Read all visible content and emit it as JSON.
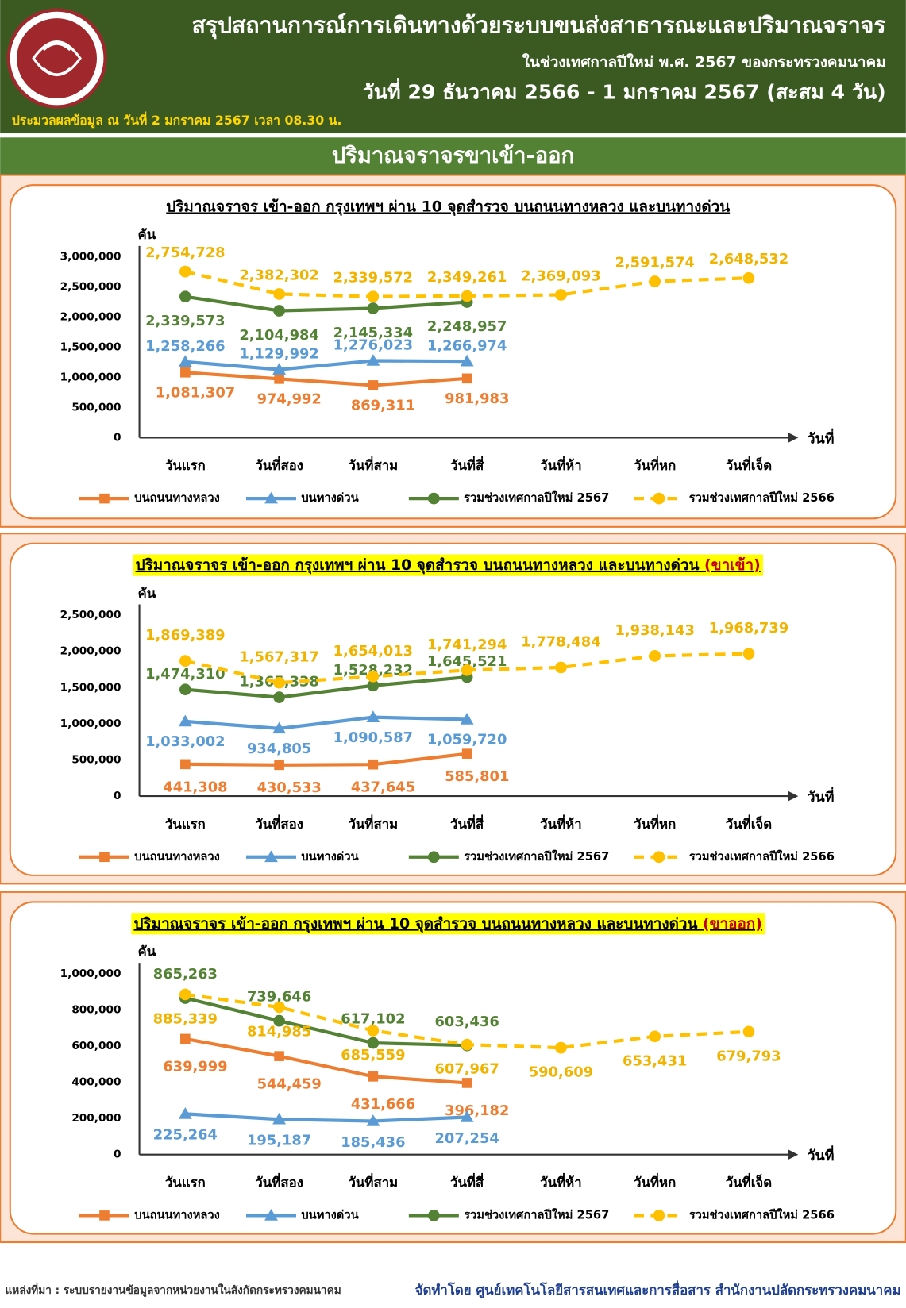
{
  "header": {
    "title": "สรุปสถานการณ์การเดินทางด้วยระบบขนส่งสาธารณะและปริมาณจราจร",
    "subtitle": "ในช่วงเทศกาลปีใหม่ พ.ศ. 2567 ของกระทรวงคมนาคม",
    "date_range": "วันที่ 29 ธันวาคม 2566 - 1 มกราคม 2567 (สะสม 4 วัน)",
    "processed": "ประมวลผลข้อมูล ณ วันที่ 2 มกราคม 2567 เวลา 08.30 น.",
    "section": "ปริมาณจราจรขาเข้า-ออก"
  },
  "chart_data": [
    {
      "type": "line",
      "title": "ปริมาณจราจร เข้า-ออก กรุงเทพฯ ผ่าน 10 จุดสำรวจ บนถนนทางหลวง และบนทางด่วน",
      "y_label": "คัน",
      "x_label": "วันที่",
      "grid": false,
      "legend": "bottom",
      "categories": [
        "วันแรก",
        "วันที่สอง",
        "วันที่สาม",
        "วันที่สี่",
        "วันที่ห้า",
        "วันที่หก",
        "วันที่เจ็ด"
      ],
      "ylim": [
        0,
        3000000
      ],
      "yticks": [
        0,
        {
          "value": 500000,
          "label": "500,000"
        },
        {
          "value": 1000000,
          "label": "1,000,000"
        },
        {
          "value": 1500000,
          "label": "1,500,000"
        },
        {
          "value": 2000000,
          "label": "2,000,000"
        },
        {
          "value": 2500000,
          "label": "2,500,000"
        },
        {
          "value": 3000000,
          "label": "3,000,000"
        }
      ],
      "series": [
        {
          "name": "บนถนนทางหลวง",
          "color": "#ed7d31",
          "marker": "square",
          "values": [
            1081307,
            974992,
            869311,
            981983,
            null,
            null,
            null
          ],
          "value_labels": [
            "1,081,307",
            "974,992",
            "869,311",
            "981,983",
            null,
            null,
            null
          ]
        },
        {
          "name": "บนทางด่วน",
          "color": "#5b9bd5",
          "marker": "triangle",
          "values": [
            1258266,
            1129992,
            1276023,
            1266974,
            null,
            null,
            null
          ],
          "value_labels": [
            "1,258,266",
            "1,129,992",
            "1,276,023",
            "1,266,974",
            null,
            null,
            null
          ]
        },
        {
          "name": "รวมช่วงเทศกาลปีใหม่ 2567",
          "color": "#548235",
          "marker": "circle",
          "values": [
            2339573,
            2104984,
            2145334,
            2248957,
            null,
            null,
            null
          ],
          "value_labels": [
            "2,339,573",
            "2,104,984",
            "2,145,334",
            "2,248,957",
            null,
            null,
            null
          ]
        },
        {
          "name": "รวมช่วงเทศกาลปีใหม่ 2566",
          "color": "#ffc000",
          "marker": "circle",
          "dashed": true,
          "values": [
            2754728,
            2382302,
            2339572,
            2349261,
            2369093,
            2591574,
            2648532
          ],
          "value_labels": [
            "2,754,728",
            "2,382,302",
            "2,339,572",
            "2,349,261",
            "2,369,093",
            "2,591,574",
            "2,648,532"
          ]
        }
      ]
    },
    {
      "type": "line",
      "title": "ปริมาณจราจร เข้า-ออก กรุงเทพฯ ผ่าน 10 จุดสำรวจ บนถนนทางหลวง และบนทางด่วน ",
      "title_note": "(ขาเข้า)",
      "y_label": "คัน",
      "x_label": "วันที่",
      "grid": false,
      "legend": "bottom",
      "categories": [
        "วันแรก",
        "วันที่สอง",
        "วันที่สาม",
        "วันที่สี่",
        "วันที่ห้า",
        "วันที่หก",
        "วันที่เจ็ด"
      ],
      "ylim": [
        0,
        2500000
      ],
      "yticks": [
        0,
        {
          "value": 500000,
          "label": "500,000"
        },
        {
          "value": 1000000,
          "label": "1,000,000"
        },
        {
          "value": 1500000,
          "label": "1,500,000"
        },
        {
          "value": 2000000,
          "label": "2,000,000"
        },
        {
          "value": 2500000,
          "label": "2,500,000"
        }
      ],
      "series": [
        {
          "name": "บนถนนทางหลวง",
          "color": "#ed7d31",
          "marker": "square",
          "values": [
            441308,
            430533,
            437645,
            585801,
            null,
            null,
            null
          ],
          "value_labels": [
            "441,308",
            "430,533",
            "437,645",
            "585,801",
            null,
            null,
            null
          ]
        },
        {
          "name": "บนทางด่วน",
          "color": "#5b9bd5",
          "marker": "triangle",
          "values": [
            1033002,
            934805,
            1090587,
            1059720,
            null,
            null,
            null
          ],
          "value_labels": [
            "1,033,002",
            "934,805",
            "1,090,587",
            "1,059,720",
            null,
            null,
            null
          ]
        },
        {
          "name": "รวมช่วงเทศกาลปีใหม่ 2567",
          "color": "#548235",
          "marker": "circle",
          "values": [
            1474310,
            1365338,
            1528232,
            1645521,
            null,
            null,
            null
          ],
          "value_labels": [
            "1,474,310",
            "1,365,338",
            "1,528,232",
            "1,645,521",
            null,
            null,
            null
          ]
        },
        {
          "name": "รวมช่วงเทศกาลปีใหม่ 2566",
          "color": "#ffc000",
          "marker": "circle",
          "dashed": true,
          "values": [
            1869389,
            1567317,
            1654013,
            1741294,
            1778484,
            1938143,
            1968739
          ],
          "value_labels": [
            "1,869,389",
            "1,567,317",
            "1,654,013",
            "1,741,294",
            "1,778,484",
            "1,938,143",
            "1,968,739"
          ]
        }
      ]
    },
    {
      "type": "line",
      "title": "ปริมาณจราจร เข้า-ออก กรุงเทพฯ ผ่าน 10 จุดสำรวจ บนถนนทางหลวง และบนทางด่วน ",
      "title_note": "(ขาออก)",
      "y_label": "คัน",
      "x_label": "วันที่",
      "grid": false,
      "legend": "bottom",
      "categories": [
        "วันแรก",
        "วันที่สอง",
        "วันที่สาม",
        "วันที่สี่",
        "วันที่ห้า",
        "วันที่หก",
        "วันที่เจ็ด"
      ],
      "ylim": [
        0,
        1000000
      ],
      "yticks": [
        0,
        {
          "value": 200000,
          "label": "200,000"
        },
        {
          "value": 400000,
          "label": "400,000"
        },
        {
          "value": 600000,
          "label": "600,000"
        },
        {
          "value": 800000,
          "label": "800,000"
        },
        {
          "value": 1000000,
          "label": "1,000,000"
        }
      ],
      "series": [
        {
          "name": "บนถนนทางหลวง",
          "color": "#ed7d31",
          "marker": "square",
          "values": [
            639999,
            544459,
            431666,
            396182,
            null,
            null,
            null
          ],
          "value_labels": [
            "639,999",
            "544,459",
            "431,666",
            "396,182",
            null,
            null,
            null
          ]
        },
        {
          "name": "บนทางด่วน",
          "color": "#5b9bd5",
          "marker": "triangle",
          "values": [
            225264,
            195187,
            185436,
            207254,
            null,
            null,
            null
          ],
          "value_labels": [
            "225,264",
            "195,187",
            "185,436",
            "207,254",
            null,
            null,
            null
          ]
        },
        {
          "name": "รวมช่วงเทศกาลปีใหม่ 2567",
          "color": "#548235",
          "marker": "circle",
          "values": [
            865263,
            739646,
            617102,
            603436,
            null,
            null,
            null
          ],
          "value_labels": [
            "865,263",
            "739,646",
            "617,102",
            "603,436",
            null,
            null,
            null
          ]
        },
        {
          "name": "รวมช่วงเทศกาลปีใหม่ 2566",
          "color": "#ffc000",
          "marker": "circle",
          "dashed": true,
          "values": [
            885339,
            814985,
            685559,
            607967,
            590609,
            653431,
            679793
          ],
          "value_labels": [
            "885,339",
            "814,985",
            "685,559",
            "607,967",
            "590,609",
            "653,431",
            "679,793"
          ]
        }
      ]
    }
  ],
  "footer": {
    "source": "แหล่งที่มา : ระบบรายงานข้อมูลจากหน่วยงานในสังกัดกระทรวงคมนาคม",
    "credit": "จัดทำโดย ศูนย์เทคโนโลยีสารสนเทศและการสื่อสาร สำนักงานปลัดกระทรวงคมนาคม"
  }
}
